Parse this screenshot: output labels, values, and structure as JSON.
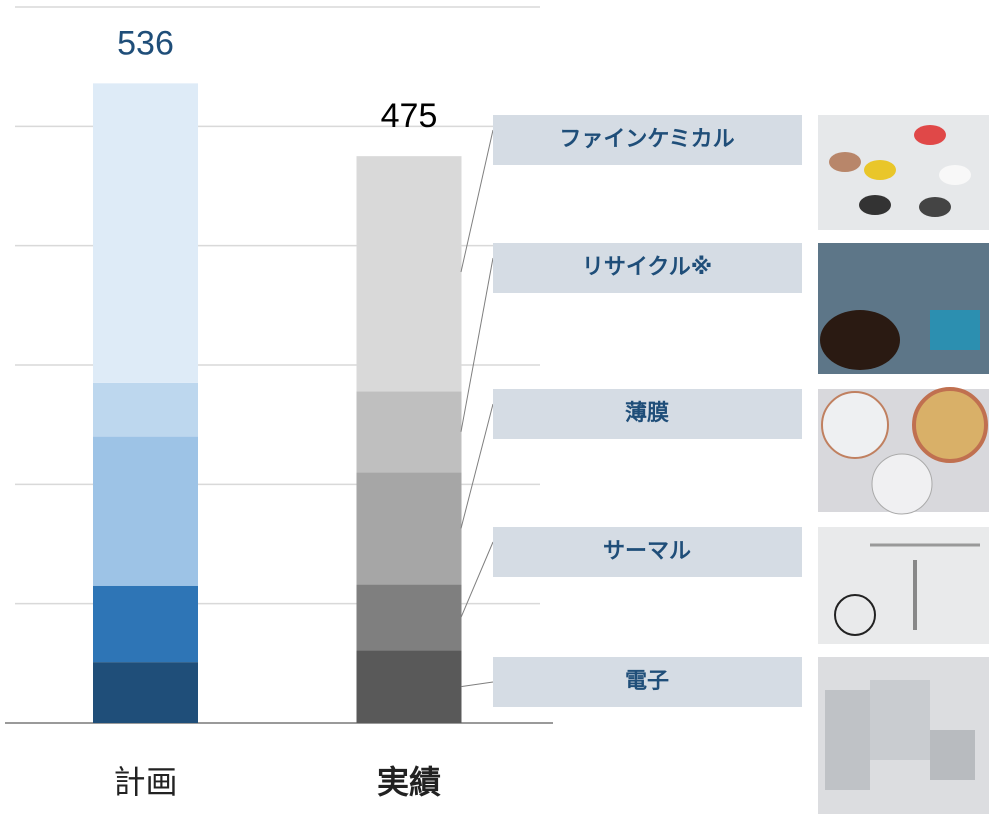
{
  "chart_data": {
    "type": "stacked-bar",
    "categories": [
      "計画",
      "実績"
    ],
    "series": [
      {
        "name": "電子",
        "colors": [
          "#1f4e79",
          "#595959"
        ],
        "values": [
          51,
          61
        ]
      },
      {
        "name": "サーマル",
        "colors": [
          "#2e75b6",
          "#7f7f7f"
        ],
        "values": [
          64,
          55
        ]
      },
      {
        "name": "薄膜",
        "colors": [
          "#9dc3e6",
          "#a6a6a6"
        ],
        "values": [
          125,
          94
        ]
      },
      {
        "name": "リサイクル※",
        "colors": [
          "#bdd7ee",
          "#bfbfbf"
        ],
        "values": [
          45,
          68
        ]
      },
      {
        "name": "ファインケミカル",
        "colors": [
          "#deebf7",
          "#d9d9d9"
        ],
        "values": [
          251,
          197
        ]
      }
    ],
    "totals": [
      536,
      475
    ],
    "ylim": [
      0,
      600
    ],
    "yticks": [
      0,
      100,
      200,
      300,
      400,
      500,
      600
    ],
    "grid": true
  }
}
